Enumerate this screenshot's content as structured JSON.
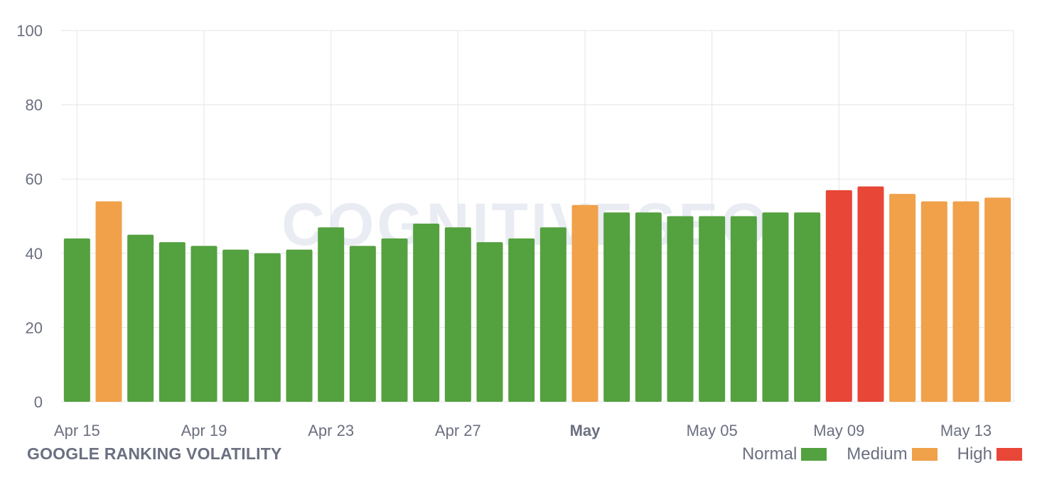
{
  "chart_data": {
    "type": "bar",
    "title": "GOOGLE RANKING VOLATILITY",
    "watermark": "COGNITIVESEO",
    "xlabel": "",
    "ylabel": "",
    "ylim": [
      0,
      100
    ],
    "y_ticks": [
      "0",
      "20",
      "40",
      "60",
      "80",
      "100"
    ],
    "x_tick_labels": [
      {
        "index": 0,
        "label": "Apr 15",
        "bold": false
      },
      {
        "index": 4,
        "label": "Apr 19",
        "bold": false
      },
      {
        "index": 8,
        "label": "Apr 23",
        "bold": false
      },
      {
        "index": 12,
        "label": "Apr 27",
        "bold": false
      },
      {
        "index": 16,
        "label": "May",
        "bold": true
      },
      {
        "index": 20,
        "label": "May 05",
        "bold": false
      },
      {
        "index": 24,
        "label": "May 09",
        "bold": false
      },
      {
        "index": 28,
        "label": "May 13",
        "bold": false
      }
    ],
    "categories": [
      "Apr 15",
      "Apr 16",
      "Apr 17",
      "Apr 18",
      "Apr 19",
      "Apr 20",
      "Apr 21",
      "Apr 22",
      "Apr 23",
      "Apr 24",
      "Apr 25",
      "Apr 26",
      "Apr 27",
      "Apr 28",
      "Apr 29",
      "Apr 30",
      "May 01",
      "May 02",
      "May 03",
      "May 04",
      "May 05",
      "May 06",
      "May 07",
      "May 08",
      "May 09",
      "May 10",
      "May 11",
      "May 12",
      "May 13",
      "May 14"
    ],
    "values": [
      44,
      54,
      45,
      43,
      42,
      41,
      40,
      41,
      47,
      42,
      44,
      48,
      47,
      43,
      44,
      47,
      53,
      51,
      51,
      50,
      50,
      50,
      51,
      51,
      57,
      58,
      56,
      54,
      54,
      55
    ],
    "levels": [
      "normal",
      "medium",
      "normal",
      "normal",
      "normal",
      "normal",
      "normal",
      "normal",
      "normal",
      "normal",
      "normal",
      "normal",
      "normal",
      "normal",
      "normal",
      "normal",
      "medium",
      "normal",
      "normal",
      "normal",
      "normal",
      "normal",
      "normal",
      "normal",
      "high",
      "high",
      "medium",
      "medium",
      "medium",
      "medium"
    ],
    "legend": [
      {
        "key": "normal",
        "label": "Normal",
        "color": "#54a13f"
      },
      {
        "key": "medium",
        "label": "Medium",
        "color": "#f0a14a"
      },
      {
        "key": "high",
        "label": "High",
        "color": "#e84637"
      }
    ],
    "legend_position": "bottom-right",
    "grid": true
  }
}
